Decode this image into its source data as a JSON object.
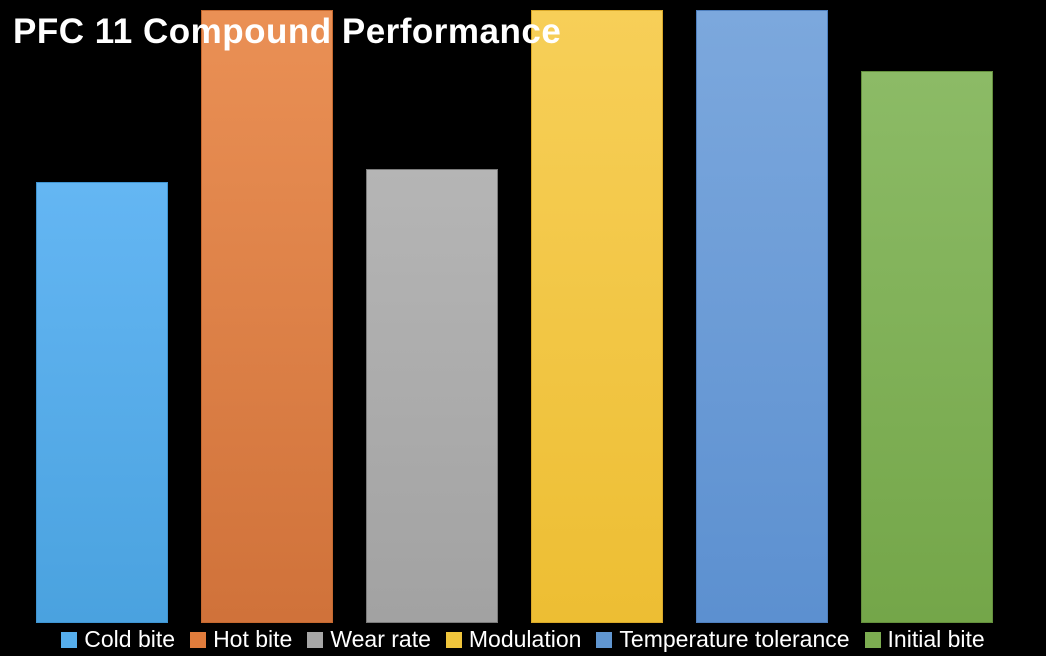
{
  "title": "PFC 11 Compound Performance",
  "colors": {
    "background": "#000000",
    "title_text": "#ffffff",
    "legend_text": "#ffffff"
  },
  "chart_data": {
    "type": "bar",
    "title": "PFC 11 Compound Performance",
    "xlabel": "",
    "ylabel": "",
    "ylim": [
      0,
      10
    ],
    "grid": false,
    "axes_visible": false,
    "legend_position": "bottom",
    "background": "#000000",
    "series": [
      {
        "name": "Cold bite",
        "value": 7.2,
        "color": "#55AEEC",
        "fill_top": "#64B6F3",
        "fill_bottom": "#4AA2DF",
        "border": "#3F94D1"
      },
      {
        "name": "Hot bite",
        "value": 10,
        "color": "#E07C3C",
        "fill_top": "#EA9055",
        "fill_bottom": "#D0723A",
        "border": "#C4682F"
      },
      {
        "name": "Wear rate",
        "value": 7.4,
        "color": "#A6A6A6",
        "fill_top": "#B5B5B5",
        "fill_bottom": "#A2A2A2",
        "border": "#7A7A7A"
      },
      {
        "name": "Modulation",
        "value": 10,
        "color": "#F0C53C",
        "fill_top": "#F7CF58",
        "fill_bottom": "#EDBE33",
        "border": "#D9A829"
      },
      {
        "name": "Temperature tolerance",
        "value": 10,
        "color": "#6096D1",
        "fill_top": "#7CA8DD",
        "fill_bottom": "#5C90D0",
        "border": "#4E7FBE"
      },
      {
        "name": "Initial bite",
        "value": 9,
        "color": "#7CAC51",
        "fill_top": "#8CBB66",
        "fill_bottom": "#74A649",
        "border": "#648F3D"
      }
    ]
  }
}
